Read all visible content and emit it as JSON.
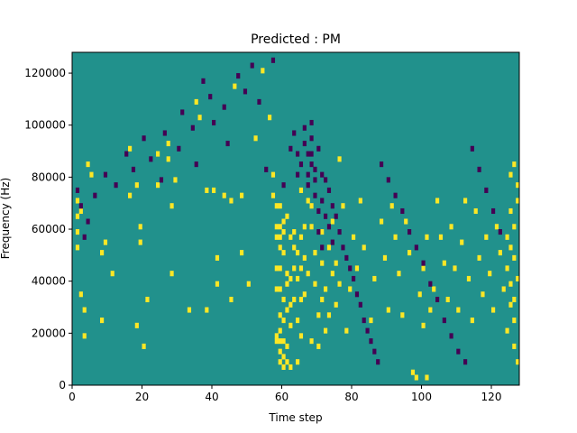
{
  "chart_data": {
    "type": "heatmap",
    "title": "Predicted : PM",
    "xlabel": "Time step",
    "ylabel": "Frequency (Hz)",
    "xlim": [
      0,
      128
    ],
    "ylim": [
      0,
      128000
    ],
    "xticks": [
      0,
      20,
      40,
      60,
      80,
      100,
      120
    ],
    "xtick_labels": [
      "0",
      "20",
      "40",
      "60",
      "80",
      "100",
      "120"
    ],
    "yticks": [
      0,
      20000,
      40000,
      60000,
      80000,
      100000,
      120000
    ],
    "ytick_labels": [
      "0",
      "20000",
      "40000",
      "60000",
      "80000",
      "100000",
      "120000"
    ],
    "grid": false,
    "colormap": "viridis",
    "colors": {
      "background": "#21918c",
      "high": "#fde725",
      "low": "#440154"
    },
    "n_time_steps": 128,
    "n_freq_bins": 64,
    "bin_hz": 2000,
    "description_of_values": "values 0 = low (dark purple), 1 = background (teal), 2 = high (yellow)",
    "high_cells": [
      [
        1,
        35
      ],
      [
        1,
        32
      ],
      [
        1,
        29
      ],
      [
        1,
        26
      ],
      [
        2,
        17
      ],
      [
        2,
        33
      ],
      [
        3,
        14
      ],
      [
        3,
        9
      ],
      [
        4,
        42
      ],
      [
        5,
        40
      ],
      [
        8,
        12
      ],
      [
        8,
        25
      ],
      [
        9,
        27
      ],
      [
        11,
        21
      ],
      [
        16,
        45
      ],
      [
        16,
        36
      ],
      [
        18,
        38
      ],
      [
        18,
        11
      ],
      [
        19,
        30
      ],
      [
        19,
        27
      ],
      [
        20,
        7
      ],
      [
        21,
        16
      ],
      [
        24,
        44
      ],
      [
        24,
        38
      ],
      [
        27,
        43
      ],
      [
        27,
        46
      ],
      [
        28,
        34
      ],
      [
        28,
        21
      ],
      [
        29,
        39
      ],
      [
        33,
        14
      ],
      [
        35,
        54
      ],
      [
        36,
        51
      ],
      [
        38,
        14
      ],
      [
        38,
        37
      ],
      [
        40,
        37
      ],
      [
        41,
        24
      ],
      [
        41,
        19
      ],
      [
        43,
        36
      ],
      [
        45,
        16
      ],
      [
        45,
        35
      ],
      [
        46,
        57
      ],
      [
        48,
        25
      ],
      [
        48,
        36
      ],
      [
        50,
        19
      ],
      [
        52,
        47
      ],
      [
        54,
        60
      ],
      [
        56,
        51
      ],
      [
        57,
        40
      ],
      [
        57,
        36
      ],
      [
        58,
        34
      ],
      [
        58,
        30
      ],
      [
        58,
        28
      ],
      [
        58,
        22
      ],
      [
        58,
        18
      ],
      [
        58,
        9
      ],
      [
        58,
        8
      ],
      [
        59,
        34
      ],
      [
        59,
        30
      ],
      [
        59,
        28
      ],
      [
        59,
        26
      ],
      [
        59,
        22
      ],
      [
        59,
        18
      ],
      [
        59,
        13
      ],
      [
        59,
        10
      ],
      [
        59,
        8
      ],
      [
        59,
        6
      ],
      [
        59,
        4
      ],
      [
        60,
        31
      ],
      [
        60,
        29
      ],
      [
        60,
        25
      ],
      [
        60,
        16
      ],
      [
        60,
        12
      ],
      [
        60,
        8
      ],
      [
        60,
        5
      ],
      [
        60,
        3
      ],
      [
        61,
        32
      ],
      [
        61,
        21
      ],
      [
        61,
        19
      ],
      [
        61,
        14
      ],
      [
        61,
        7
      ],
      [
        61,
        4
      ],
      [
        62,
        28
      ],
      [
        62,
        20
      ],
      [
        62,
        15
      ],
      [
        62,
        11
      ],
      [
        62,
        3
      ],
      [
        63,
        29
      ],
      [
        63,
        26
      ],
      [
        63,
        22
      ],
      [
        63,
        16
      ],
      [
        64,
        25
      ],
      [
        64,
        20
      ],
      [
        64,
        12
      ],
      [
        64,
        4
      ],
      [
        65,
        37
      ],
      [
        65,
        28
      ],
      [
        65,
        22
      ],
      [
        65,
        16
      ],
      [
        65,
        9
      ],
      [
        66,
        30
      ],
      [
        66,
        24
      ],
      [
        66,
        17
      ],
      [
        67,
        35
      ],
      [
        67,
        21
      ],
      [
        68,
        34
      ],
      [
        68,
        30
      ],
      [
        68,
        8
      ],
      [
        69,
        25
      ],
      [
        69,
        19
      ],
      [
        70,
        13
      ],
      [
        70,
        7
      ],
      [
        71,
        29
      ],
      [
        71,
        23
      ],
      [
        71,
        16
      ],
      [
        72,
        18
      ],
      [
        72,
        10
      ],
      [
        73,
        26
      ],
      [
        73,
        13
      ],
      [
        74,
        31
      ],
      [
        74,
        21
      ],
      [
        75,
        23
      ],
      [
        75,
        15
      ],
      [
        76,
        43
      ],
      [
        76,
        19
      ],
      [
        77,
        34
      ],
      [
        78,
        10
      ],
      [
        79,
        18
      ],
      [
        80,
        28
      ],
      [
        81,
        22
      ],
      [
        82,
        35
      ],
      [
        83,
        26
      ],
      [
        85,
        12
      ],
      [
        86,
        20
      ],
      [
        88,
        31
      ],
      [
        89,
        24
      ],
      [
        90,
        14
      ],
      [
        91,
        34
      ],
      [
        92,
        28
      ],
      [
        93,
        21
      ],
      [
        94,
        13
      ],
      [
        95,
        31
      ],
      [
        96,
        25
      ],
      [
        97,
        2
      ],
      [
        98,
        1
      ],
      [
        99,
        17
      ],
      [
        100,
        22
      ],
      [
        100,
        11
      ],
      [
        101,
        28
      ],
      [
        101,
        1
      ],
      [
        102,
        14
      ],
      [
        103,
        18
      ],
      [
        104,
        35
      ],
      [
        105,
        28
      ],
      [
        106,
        23
      ],
      [
        107,
        16
      ],
      [
        108,
        30
      ],
      [
        109,
        22
      ],
      [
        110,
        14
      ],
      [
        111,
        27
      ],
      [
        112,
        35
      ],
      [
        113,
        20
      ],
      [
        114,
        12
      ],
      [
        115,
        33
      ],
      [
        116,
        24
      ],
      [
        117,
        17
      ],
      [
        118,
        28
      ],
      [
        119,
        21
      ],
      [
        120,
        14
      ],
      [
        121,
        30
      ],
      [
        122,
        25
      ],
      [
        123,
        18
      ],
      [
        124,
        28
      ],
      [
        124,
        22
      ],
      [
        124,
        10
      ],
      [
        125,
        40
      ],
      [
        125,
        33
      ],
      [
        125,
        26
      ],
      [
        125,
        19
      ],
      [
        125,
        15
      ],
      [
        126,
        42
      ],
      [
        126,
        30
      ],
      [
        126,
        24
      ],
      [
        126,
        16
      ],
      [
        126,
        12
      ],
      [
        126,
        7
      ],
      [
        127,
        38
      ],
      [
        127,
        35
      ],
      [
        127,
        20
      ],
      [
        127,
        4
      ]
    ],
    "low_cells": [
      [
        1,
        37
      ],
      [
        2,
        34
      ],
      [
        3,
        28
      ],
      [
        4,
        31
      ],
      [
        6,
        36
      ],
      [
        9,
        40
      ],
      [
        12,
        38
      ],
      [
        15,
        44
      ],
      [
        17,
        41
      ],
      [
        20,
        47
      ],
      [
        22,
        43
      ],
      [
        25,
        39
      ],
      [
        26,
        48
      ],
      [
        30,
        45
      ],
      [
        31,
        52
      ],
      [
        34,
        49
      ],
      [
        35,
        42
      ],
      [
        37,
        58
      ],
      [
        39,
        55
      ],
      [
        40,
        50
      ],
      [
        43,
        53
      ],
      [
        44,
        46
      ],
      [
        47,
        59
      ],
      [
        49,
        56
      ],
      [
        51,
        61
      ],
      [
        53,
        54
      ],
      [
        55,
        41
      ],
      [
        57,
        62
      ],
      [
        60,
        38
      ],
      [
        62,
        45
      ],
      [
        63,
        48
      ],
      [
        64,
        44
      ],
      [
        64,
        40
      ],
      [
        65,
        42
      ],
      [
        66,
        46
      ],
      [
        66,
        49
      ],
      [
        67,
        44
      ],
      [
        67,
        40
      ],
      [
        67,
        38
      ],
      [
        68,
        50
      ],
      [
        68,
        47
      ],
      [
        68,
        44
      ],
      [
        68,
        42
      ],
      [
        69,
        39
      ],
      [
        69,
        41
      ],
      [
        69,
        36
      ],
      [
        70,
        45
      ],
      [
        70,
        33
      ],
      [
        70,
        29
      ],
      [
        71,
        40
      ],
      [
        71,
        35
      ],
      [
        71,
        26
      ],
      [
        72,
        39
      ],
      [
        72,
        32
      ],
      [
        73,
        37
      ],
      [
        73,
        30
      ],
      [
        74,
        34
      ],
      [
        74,
        27
      ],
      [
        75,
        32
      ],
      [
        76,
        29
      ],
      [
        77,
        26
      ],
      [
        78,
        24
      ],
      [
        79,
        22
      ],
      [
        80,
        20
      ],
      [
        81,
        17
      ],
      [
        82,
        15
      ],
      [
        83,
        12
      ],
      [
        84,
        10
      ],
      [
        85,
        8
      ],
      [
        86,
        6
      ],
      [
        87,
        4
      ],
      [
        88,
        42
      ],
      [
        90,
        39
      ],
      [
        92,
        36
      ],
      [
        94,
        33
      ],
      [
        96,
        29
      ],
      [
        98,
        26
      ],
      [
        100,
        23
      ],
      [
        102,
        19
      ],
      [
        104,
        16
      ],
      [
        106,
        12
      ],
      [
        108,
        9
      ],
      [
        110,
        6
      ],
      [
        112,
        4
      ],
      [
        114,
        45
      ],
      [
        116,
        41
      ],
      [
        118,
        37
      ],
      [
        120,
        33
      ],
      [
        122,
        29
      ]
    ]
  }
}
